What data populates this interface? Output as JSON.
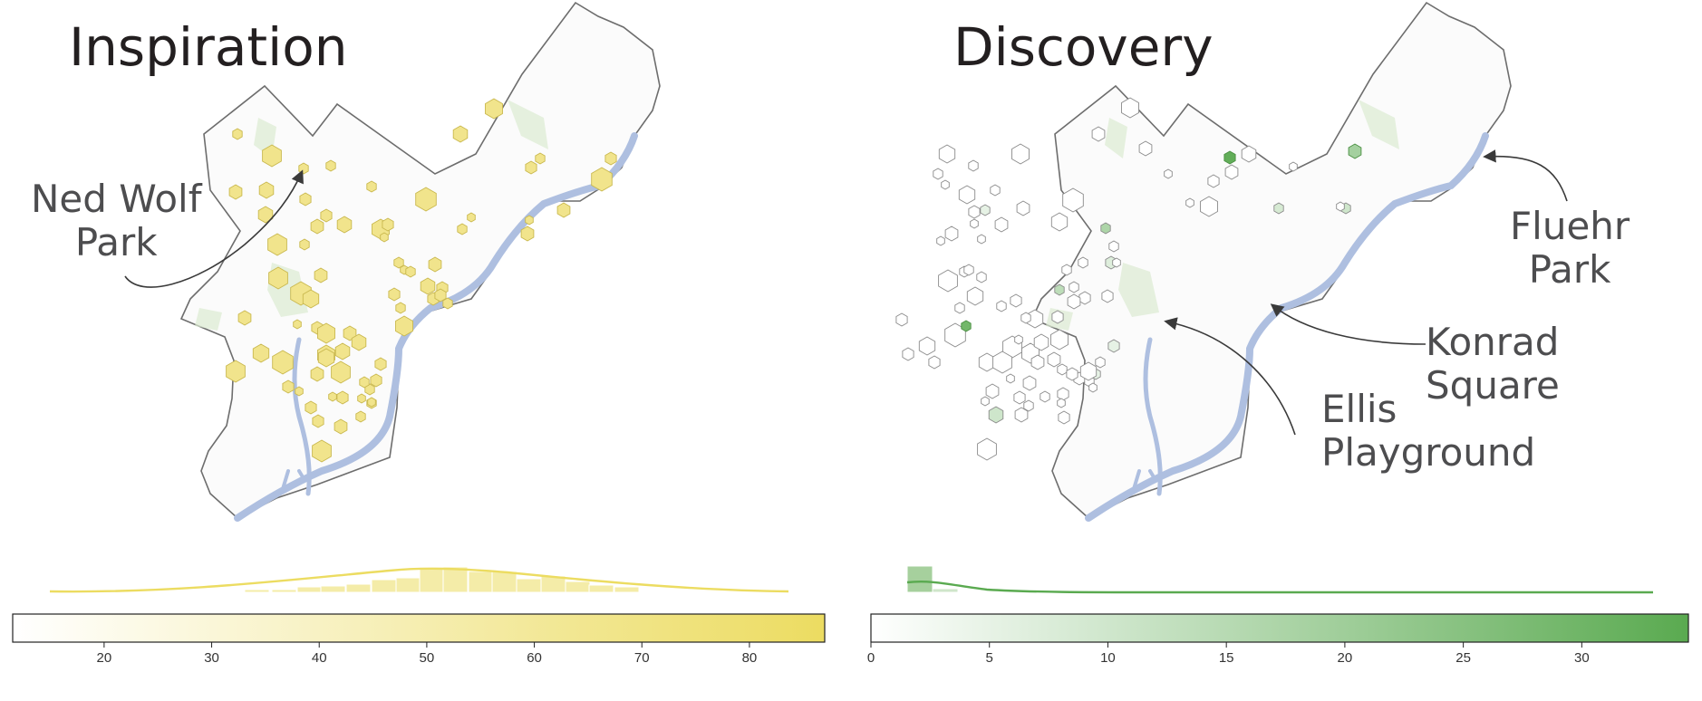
{
  "panels": [
    {
      "title": "Inspiration",
      "callouts": [
        {
          "text_line1": "Ned Wolf",
          "text_line2": "Park"
        }
      ],
      "colorbar": {
        "min": 11.5,
        "max": 87,
        "ticks": [
          20,
          30,
          40,
          50,
          60,
          70,
          80
        ],
        "color_low": "#ffffff",
        "color_high": "#ecdc61"
      }
    },
    {
      "title": "Discovery",
      "callouts": [
        {
          "text_line1": "Fluehr",
          "text_line2": "Park"
        },
        {
          "text_line1": "Konrad Square"
        },
        {
          "text_line1": "Ellis",
          "text_line2": "Playground"
        }
      ],
      "colorbar": {
        "min": 0,
        "max": 34.5,
        "ticks": [
          0,
          5,
          10,
          15,
          20,
          25,
          30
        ],
        "color_low": "#ffffff",
        "color_high": "#5aaa50"
      }
    }
  ],
  "colors": {
    "boundary": "#6d6d6d",
    "river": "#aebfe0",
    "park": "#dcebd2",
    "inspiration_hex": "#f1e48c",
    "discovery_hex": "#5aaa50"
  }
}
